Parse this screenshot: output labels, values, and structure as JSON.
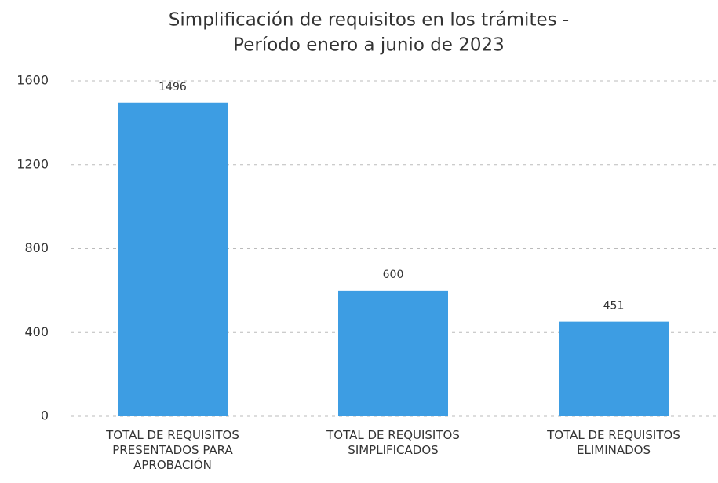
{
  "chart_data": {
    "type": "bar",
    "title": "Simplificación de requisitos en los trámites -",
    "subtitle": "Período enero a junio de 2023",
    "categories": [
      "TOTAL DE REQUISITOS PRESENTADOS PARA APROBACIÓN",
      "TOTAL DE REQUISITOS SIMPLIFICADOS",
      "TOTAL DE REQUISITOS ELIMINADOS"
    ],
    "values": [
      1496,
      600,
      451
    ],
    "color": "#3d9de3",
    "ylim": [
      0,
      1600
    ],
    "yticks": [
      0,
      400,
      800,
      1200,
      1600
    ],
    "grid": true
  }
}
